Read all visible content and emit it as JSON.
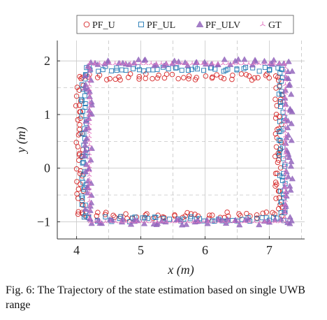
{
  "caption": "Fig. 6: The Trajectory of the state estimation based on single UWB range",
  "chart_data": {
    "type": "scatter",
    "title": "",
    "xlabel": "x (m)",
    "ylabel": "y (m)",
    "xlim": [
      3.7,
      7.55
    ],
    "ylim": [
      -1.32,
      2.38
    ],
    "xticks": [
      4,
      5,
      6,
      7
    ],
    "yticks": [
      -1,
      0,
      1,
      2
    ],
    "xtick_labels": [
      "4",
      "5",
      "6",
      "7"
    ],
    "ytick_labels": [
      "−1",
      "0",
      "1",
      "2"
    ],
    "grid": true,
    "legend_position": "top",
    "series": [
      {
        "name": "PF_U",
        "marker": "circle",
        "color": "#d62728",
        "rect": {
          "x0": 4.05,
          "x1": 7.15,
          "y0": -0.88,
          "y1": 1.7
        },
        "jitter": 0.06
      },
      {
        "name": "PF_UL",
        "marker": "square",
        "color": "#1f77b4",
        "rect": {
          "x0": 4.12,
          "x1": 7.2,
          "y0": -0.95,
          "y1": 1.85
        },
        "jitter": 0.05
      },
      {
        "name": "PF_ULV",
        "marker": "triangle",
        "color": "#9467bd",
        "rect": {
          "x0": 4.18,
          "x1": 7.3,
          "y0": -1.0,
          "y1": 1.97
        },
        "jitter": 0.06
      },
      {
        "name": "GT",
        "marker": "tri-star",
        "color": "#e377c2",
        "rect": {
          "x0": 4.2,
          "x1": 7.25,
          "y0": -1.0,
          "y1": 1.95
        },
        "jitter": 0.0
      }
    ]
  }
}
